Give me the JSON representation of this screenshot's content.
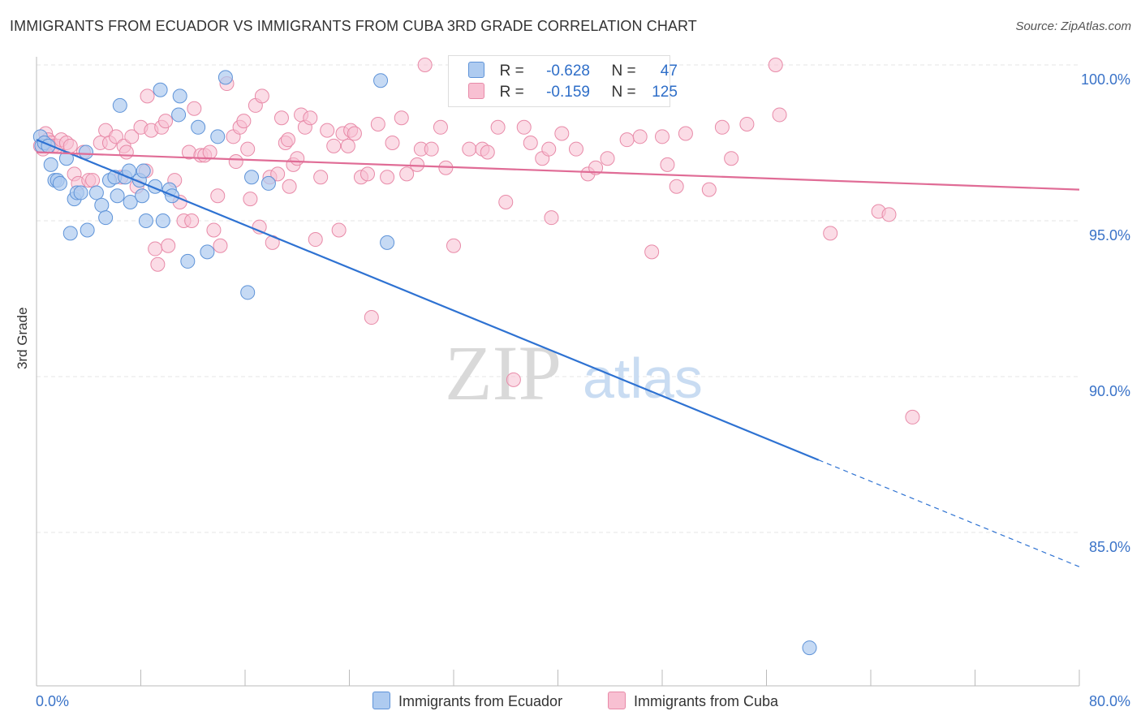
{
  "title": "IMMIGRANTS FROM ECUADOR VS IMMIGRANTS FROM CUBA 3RD GRADE CORRELATION CHART",
  "source": "Source: ZipAtlas.com",
  "watermark": {
    "zip": "ZIP",
    "atlas": "atlas"
  },
  "legend": {
    "ecuador": {
      "r_label": "R =",
      "r_value": "-0.628",
      "n_label": "N =",
      "n_value": "47"
    },
    "cuba": {
      "r_label": "R =",
      "r_value": "-0.159",
      "n_label": "N =",
      "n_value": "125"
    }
  },
  "colors": {
    "ecuador_fill": "#aecbf0",
    "ecuador_stroke": "#5e93d8",
    "ecuador_line": "#2e72d2",
    "cuba_fill": "#f8c0d2",
    "cuba_stroke": "#e88aa8",
    "cuba_line": "#e06c96",
    "grid": "#e6e6e6",
    "tick_label": "#3a73c8"
  },
  "chart_data": {
    "type": "scatter",
    "title": "IMMIGRANTS FROM ECUADOR VS IMMIGRANTS FROM CUBA 3RD GRADE CORRELATION CHART",
    "xlabel": "",
    "ylabel": "3rd Grade",
    "xlim": [
      0,
      80
    ],
    "ylim": [
      80.5,
      100.8
    ],
    "x_tick_labels": [
      "0.0%",
      "80.0%"
    ],
    "y_ticks": [
      85,
      90,
      95,
      100
    ],
    "y_tick_labels": [
      "85.0%",
      "90.0%",
      "95.0%",
      "100.0%"
    ],
    "legend_position": "bottom",
    "series": [
      {
        "name": "Immigrants from Ecuador",
        "r": -0.628,
        "n": 47,
        "trend": {
          "x0": 0,
          "y0": 97.6,
          "x1": 80,
          "y1": 83.9,
          "solid_until_x": 60
        },
        "points": [
          [
            0.3,
            97.7
          ],
          [
            0.4,
            97.4
          ],
          [
            0.6,
            97.5
          ],
          [
            1.1,
            96.8
          ],
          [
            1.4,
            96.3
          ],
          [
            1.6,
            96.3
          ],
          [
            1.8,
            96.2
          ],
          [
            2.3,
            97.0
          ],
          [
            2.6,
            94.6
          ],
          [
            2.9,
            95.7
          ],
          [
            3.1,
            95.9
          ],
          [
            3.4,
            95.9
          ],
          [
            3.9,
            94.7
          ],
          [
            3.8,
            97.2
          ],
          [
            4.6,
            95.9
          ],
          [
            5.0,
            95.5
          ],
          [
            5.3,
            95.1
          ],
          [
            5.6,
            96.3
          ],
          [
            6.0,
            96.4
          ],
          [
            6.2,
            95.8
          ],
          [
            6.4,
            98.7
          ],
          [
            6.8,
            96.4
          ],
          [
            7.1,
            96.6
          ],
          [
            7.2,
            95.6
          ],
          [
            7.9,
            96.3
          ],
          [
            8.1,
            95.8
          ],
          [
            8.4,
            95.0
          ],
          [
            8.2,
            96.6
          ],
          [
            9.1,
            96.1
          ],
          [
            9.5,
            99.2
          ],
          [
            9.7,
            95.0
          ],
          [
            10.2,
            96.0
          ],
          [
            10.4,
            95.8
          ],
          [
            10.9,
            98.4
          ],
          [
            11.0,
            99.0
          ],
          [
            11.6,
            93.7
          ],
          [
            12.4,
            98.0
          ],
          [
            13.1,
            94.0
          ],
          [
            13.9,
            97.7
          ],
          [
            14.5,
            99.6
          ],
          [
            16.2,
            92.7
          ],
          [
            16.5,
            96.4
          ],
          [
            17.8,
            96.2
          ],
          [
            26.4,
            99.5
          ],
          [
            26.9,
            94.3
          ],
          [
            59.3,
            81.3
          ],
          [
            0.9,
            97.4
          ]
        ]
      },
      {
        "name": "Immigrants from Cuba",
        "r": -0.159,
        "n": 125,
        "trend": {
          "x0": 0,
          "y0": 97.2,
          "x1": 80,
          "y1": 96.0
        },
        "points": [
          [
            0.3,
            97.4
          ],
          [
            0.5,
            97.3
          ],
          [
            0.7,
            97.8
          ],
          [
            0.9,
            97.6
          ],
          [
            1.1,
            97.5
          ],
          [
            1.3,
            97.4
          ],
          [
            1.6,
            97.4
          ],
          [
            1.9,
            97.6
          ],
          [
            2.3,
            97.5
          ],
          [
            2.6,
            97.4
          ],
          [
            2.9,
            96.5
          ],
          [
            3.2,
            96.2
          ],
          [
            3.6,
            97.2
          ],
          [
            4.0,
            96.3
          ],
          [
            4.3,
            96.3
          ],
          [
            4.9,
            97.5
          ],
          [
            5.3,
            97.9
          ],
          [
            5.6,
            97.5
          ],
          [
            6.1,
            97.7
          ],
          [
            6.5,
            96.4
          ],
          [
            6.7,
            97.4
          ],
          [
            6.9,
            97.2
          ],
          [
            7.3,
            97.7
          ],
          [
            7.7,
            96.1
          ],
          [
            8.0,
            98.0
          ],
          [
            8.4,
            96.6
          ],
          [
            8.5,
            99.0
          ],
          [
            8.8,
            97.9
          ],
          [
            9.1,
            94.1
          ],
          [
            9.3,
            93.6
          ],
          [
            9.6,
            98.0
          ],
          [
            9.9,
            98.2
          ],
          [
            10.1,
            94.2
          ],
          [
            10.6,
            96.3
          ],
          [
            11.0,
            95.6
          ],
          [
            11.3,
            95.0
          ],
          [
            11.7,
            97.2
          ],
          [
            11.9,
            95.0
          ],
          [
            12.1,
            98.6
          ],
          [
            12.6,
            97.1
          ],
          [
            12.9,
            97.1
          ],
          [
            13.3,
            97.2
          ],
          [
            13.6,
            94.7
          ],
          [
            13.9,
            95.8
          ],
          [
            14.1,
            94.2
          ],
          [
            14.6,
            99.4
          ],
          [
            15.1,
            97.7
          ],
          [
            15.3,
            96.9
          ],
          [
            15.6,
            98.0
          ],
          [
            15.9,
            98.2
          ],
          [
            16.2,
            97.3
          ],
          [
            16.4,
            95.7
          ],
          [
            16.8,
            98.7
          ],
          [
            17.1,
            94.8
          ],
          [
            17.3,
            99.0
          ],
          [
            17.9,
            96.4
          ],
          [
            18.1,
            94.3
          ],
          [
            18.5,
            96.5
          ],
          [
            18.8,
            98.3
          ],
          [
            19.1,
            97.5
          ],
          [
            19.4,
            96.1
          ],
          [
            19.7,
            96.8
          ],
          [
            20.0,
            97.0
          ],
          [
            20.3,
            98.4
          ],
          [
            20.6,
            98.0
          ],
          [
            21.0,
            98.3
          ],
          [
            21.4,
            94.4
          ],
          [
            21.8,
            96.4
          ],
          [
            22.3,
            97.9
          ],
          [
            22.8,
            97.4
          ],
          [
            23.2,
            94.7
          ],
          [
            23.5,
            97.8
          ],
          [
            23.9,
            97.4
          ],
          [
            24.1,
            97.9
          ],
          [
            24.4,
            97.8
          ],
          [
            24.9,
            96.4
          ],
          [
            25.4,
            96.5
          ],
          [
            25.7,
            91.9
          ],
          [
            26.2,
            98.1
          ],
          [
            26.9,
            96.4
          ],
          [
            27.3,
            97.5
          ],
          [
            28.0,
            98.3
          ],
          [
            28.4,
            96.5
          ],
          [
            29.2,
            96.8
          ],
          [
            29.5,
            97.3
          ],
          [
            29.8,
            100.0
          ],
          [
            30.3,
            97.3
          ],
          [
            31.0,
            98.0
          ],
          [
            31.4,
            96.7
          ],
          [
            32.0,
            94.2
          ],
          [
            33.2,
            97.3
          ],
          [
            33.5,
            98.9
          ],
          [
            34.2,
            97.3
          ],
          [
            34.6,
            97.2
          ],
          [
            35.4,
            98.0
          ],
          [
            36.0,
            95.6
          ],
          [
            36.6,
            89.9
          ],
          [
            37.4,
            98.0
          ],
          [
            37.9,
            97.5
          ],
          [
            38.8,
            97.0
          ],
          [
            39.5,
            95.1
          ],
          [
            39.3,
            97.3
          ],
          [
            40.3,
            97.8
          ],
          [
            41.4,
            97.3
          ],
          [
            42.3,
            96.5
          ],
          [
            42.9,
            96.7
          ],
          [
            43.8,
            97.0
          ],
          [
            45.3,
            97.6
          ],
          [
            46.3,
            97.7
          ],
          [
            47.2,
            94.0
          ],
          [
            48.0,
            97.7
          ],
          [
            48.4,
            96.8
          ],
          [
            49.1,
            96.1
          ],
          [
            49.8,
            97.8
          ],
          [
            51.6,
            96.0
          ],
          [
            52.6,
            98.0
          ],
          [
            53.3,
            97.0
          ],
          [
            54.5,
            98.1
          ],
          [
            56.7,
            100.0
          ],
          [
            57.0,
            98.4
          ],
          [
            60.9,
            94.6
          ],
          [
            64.6,
            95.3
          ],
          [
            65.4,
            95.2
          ],
          [
            67.2,
            88.7
          ],
          [
            19.3,
            97.6
          ]
        ]
      }
    ]
  }
}
